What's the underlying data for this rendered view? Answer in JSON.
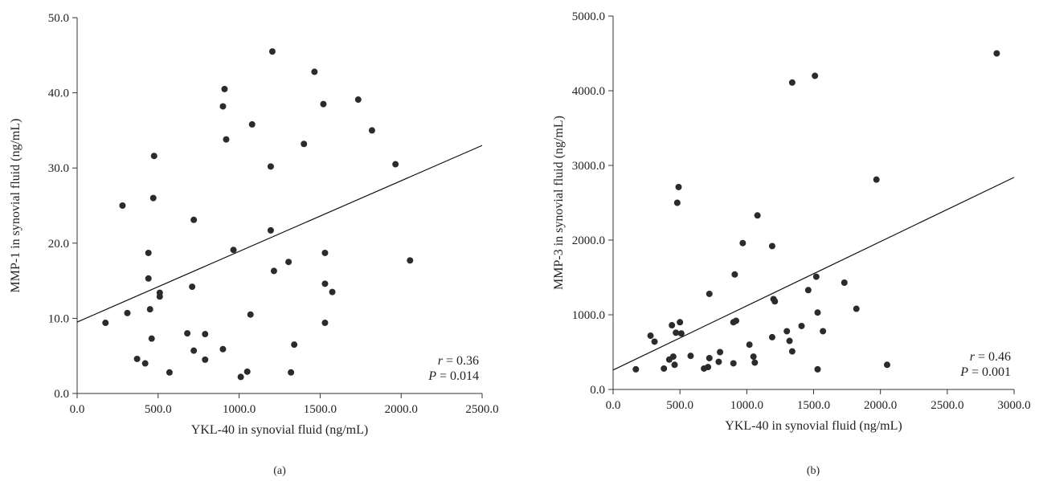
{
  "chart_data": [
    {
      "panel": "(a)",
      "type": "scatter",
      "xlabel": "YKL-40 in synovial fluid (ng/mL)",
      "ylabel": "MMP-1 in synovial fluid (ng/mL)",
      "xlim": [
        0,
        2500
      ],
      "ylim": [
        0,
        50
      ],
      "x_ticks": [
        "0.0",
        "500.0",
        "1000.0",
        "1500.0",
        "2000.0",
        "2500.0"
      ],
      "y_ticks": [
        "0.0",
        "10.0",
        "20.0",
        "30.0",
        "40.0",
        "50.0"
      ],
      "stat_r": "0.36",
      "stat_p": "0.014",
      "fit_line": [
        [
          0,
          9.5
        ],
        [
          2500,
          33.0
        ]
      ],
      "points": [
        [
          175,
          9.4
        ],
        [
          280,
          25.0
        ],
        [
          310,
          10.7
        ],
        [
          370,
          4.6
        ],
        [
          420,
          4.0
        ],
        [
          440,
          18.7
        ],
        [
          440,
          15.3
        ],
        [
          450,
          11.2
        ],
        [
          460,
          7.3
        ],
        [
          470,
          26.0
        ],
        [
          475,
          31.6
        ],
        [
          510,
          13.4
        ],
        [
          510,
          12.9
        ],
        [
          570,
          2.8
        ],
        [
          680,
          8.0
        ],
        [
          710,
          14.2
        ],
        [
          720,
          23.1
        ],
        [
          720,
          5.7
        ],
        [
          790,
          7.9
        ],
        [
          790,
          4.5
        ],
        [
          900,
          38.2
        ],
        [
          900,
          5.9
        ],
        [
          910,
          40.5
        ],
        [
          920,
          33.8
        ],
        [
          965,
          19.1
        ],
        [
          1010,
          2.2
        ],
        [
          1050,
          2.9
        ],
        [
          1070,
          10.5
        ],
        [
          1080,
          35.8
        ],
        [
          1195,
          21.7
        ],
        [
          1195,
          30.2
        ],
        [
          1205,
          45.5
        ],
        [
          1215,
          16.3
        ],
        [
          1305,
          17.5
        ],
        [
          1320,
          2.8
        ],
        [
          1340,
          6.5
        ],
        [
          1400,
          33.2
        ],
        [
          1465,
          42.8
        ],
        [
          1520,
          38.5
        ],
        [
          1530,
          18.7
        ],
        [
          1530,
          14.6
        ],
        [
          1530,
          9.4
        ],
        [
          1575,
          13.5
        ],
        [
          1735,
          39.1
        ],
        [
          1820,
          35.0
        ],
        [
          1965,
          30.5
        ],
        [
          2055,
          17.7
        ]
      ]
    },
    {
      "panel": "(b)",
      "type": "scatter",
      "xlabel": "YKL-40 in synovial fluid (ng/mL)",
      "ylabel": "MMP-3 in synovial fluid (ng/mL)",
      "xlim": [
        0,
        3000
      ],
      "ylim": [
        0,
        5000
      ],
      "x_ticks": [
        "0.0",
        "500.0",
        "1000.0",
        "1500.0",
        "2000.0",
        "2500.0",
        "3000.0"
      ],
      "y_ticks": [
        "0.0",
        "1000.0",
        "2000.0",
        "3000.0",
        "4000.0",
        "5000.0"
      ],
      "stat_r": "0.46",
      "stat_p": "0.001",
      "fit_line": [
        [
          0,
          260
        ],
        [
          3000,
          2840
        ]
      ],
      "points": [
        [
          170,
          270
        ],
        [
          280,
          720
        ],
        [
          310,
          640
        ],
        [
          380,
          280
        ],
        [
          420,
          400
        ],
        [
          440,
          860
        ],
        [
          450,
          440
        ],
        [
          460,
          330
        ],
        [
          470,
          760
        ],
        [
          480,
          2500
        ],
        [
          490,
          2710
        ],
        [
          500,
          900
        ],
        [
          510,
          750
        ],
        [
          580,
          450
        ],
        [
          680,
          280
        ],
        [
          710,
          300
        ],
        [
          720,
          420
        ],
        [
          720,
          1280
        ],
        [
          790,
          370
        ],
        [
          800,
          500
        ],
        [
          900,
          350
        ],
        [
          900,
          900
        ],
        [
          910,
          1540
        ],
        [
          920,
          920
        ],
        [
          970,
          1960
        ],
        [
          1020,
          600
        ],
        [
          1050,
          440
        ],
        [
          1060,
          360
        ],
        [
          1080,
          2330
        ],
        [
          1190,
          700
        ],
        [
          1190,
          1920
        ],
        [
          1200,
          1210
        ],
        [
          1210,
          1180
        ],
        [
          1300,
          780
        ],
        [
          1320,
          650
        ],
        [
          1340,
          510
        ],
        [
          1340,
          4110
        ],
        [
          1410,
          850
        ],
        [
          1460,
          1330
        ],
        [
          1510,
          4200
        ],
        [
          1520,
          1510
        ],
        [
          1530,
          1030
        ],
        [
          1530,
          270
        ],
        [
          1570,
          780
        ],
        [
          1730,
          1430
        ],
        [
          1820,
          1080
        ],
        [
          1970,
          2810
        ],
        [
          2050,
          330
        ],
        [
          2870,
          4500
        ]
      ]
    }
  ]
}
